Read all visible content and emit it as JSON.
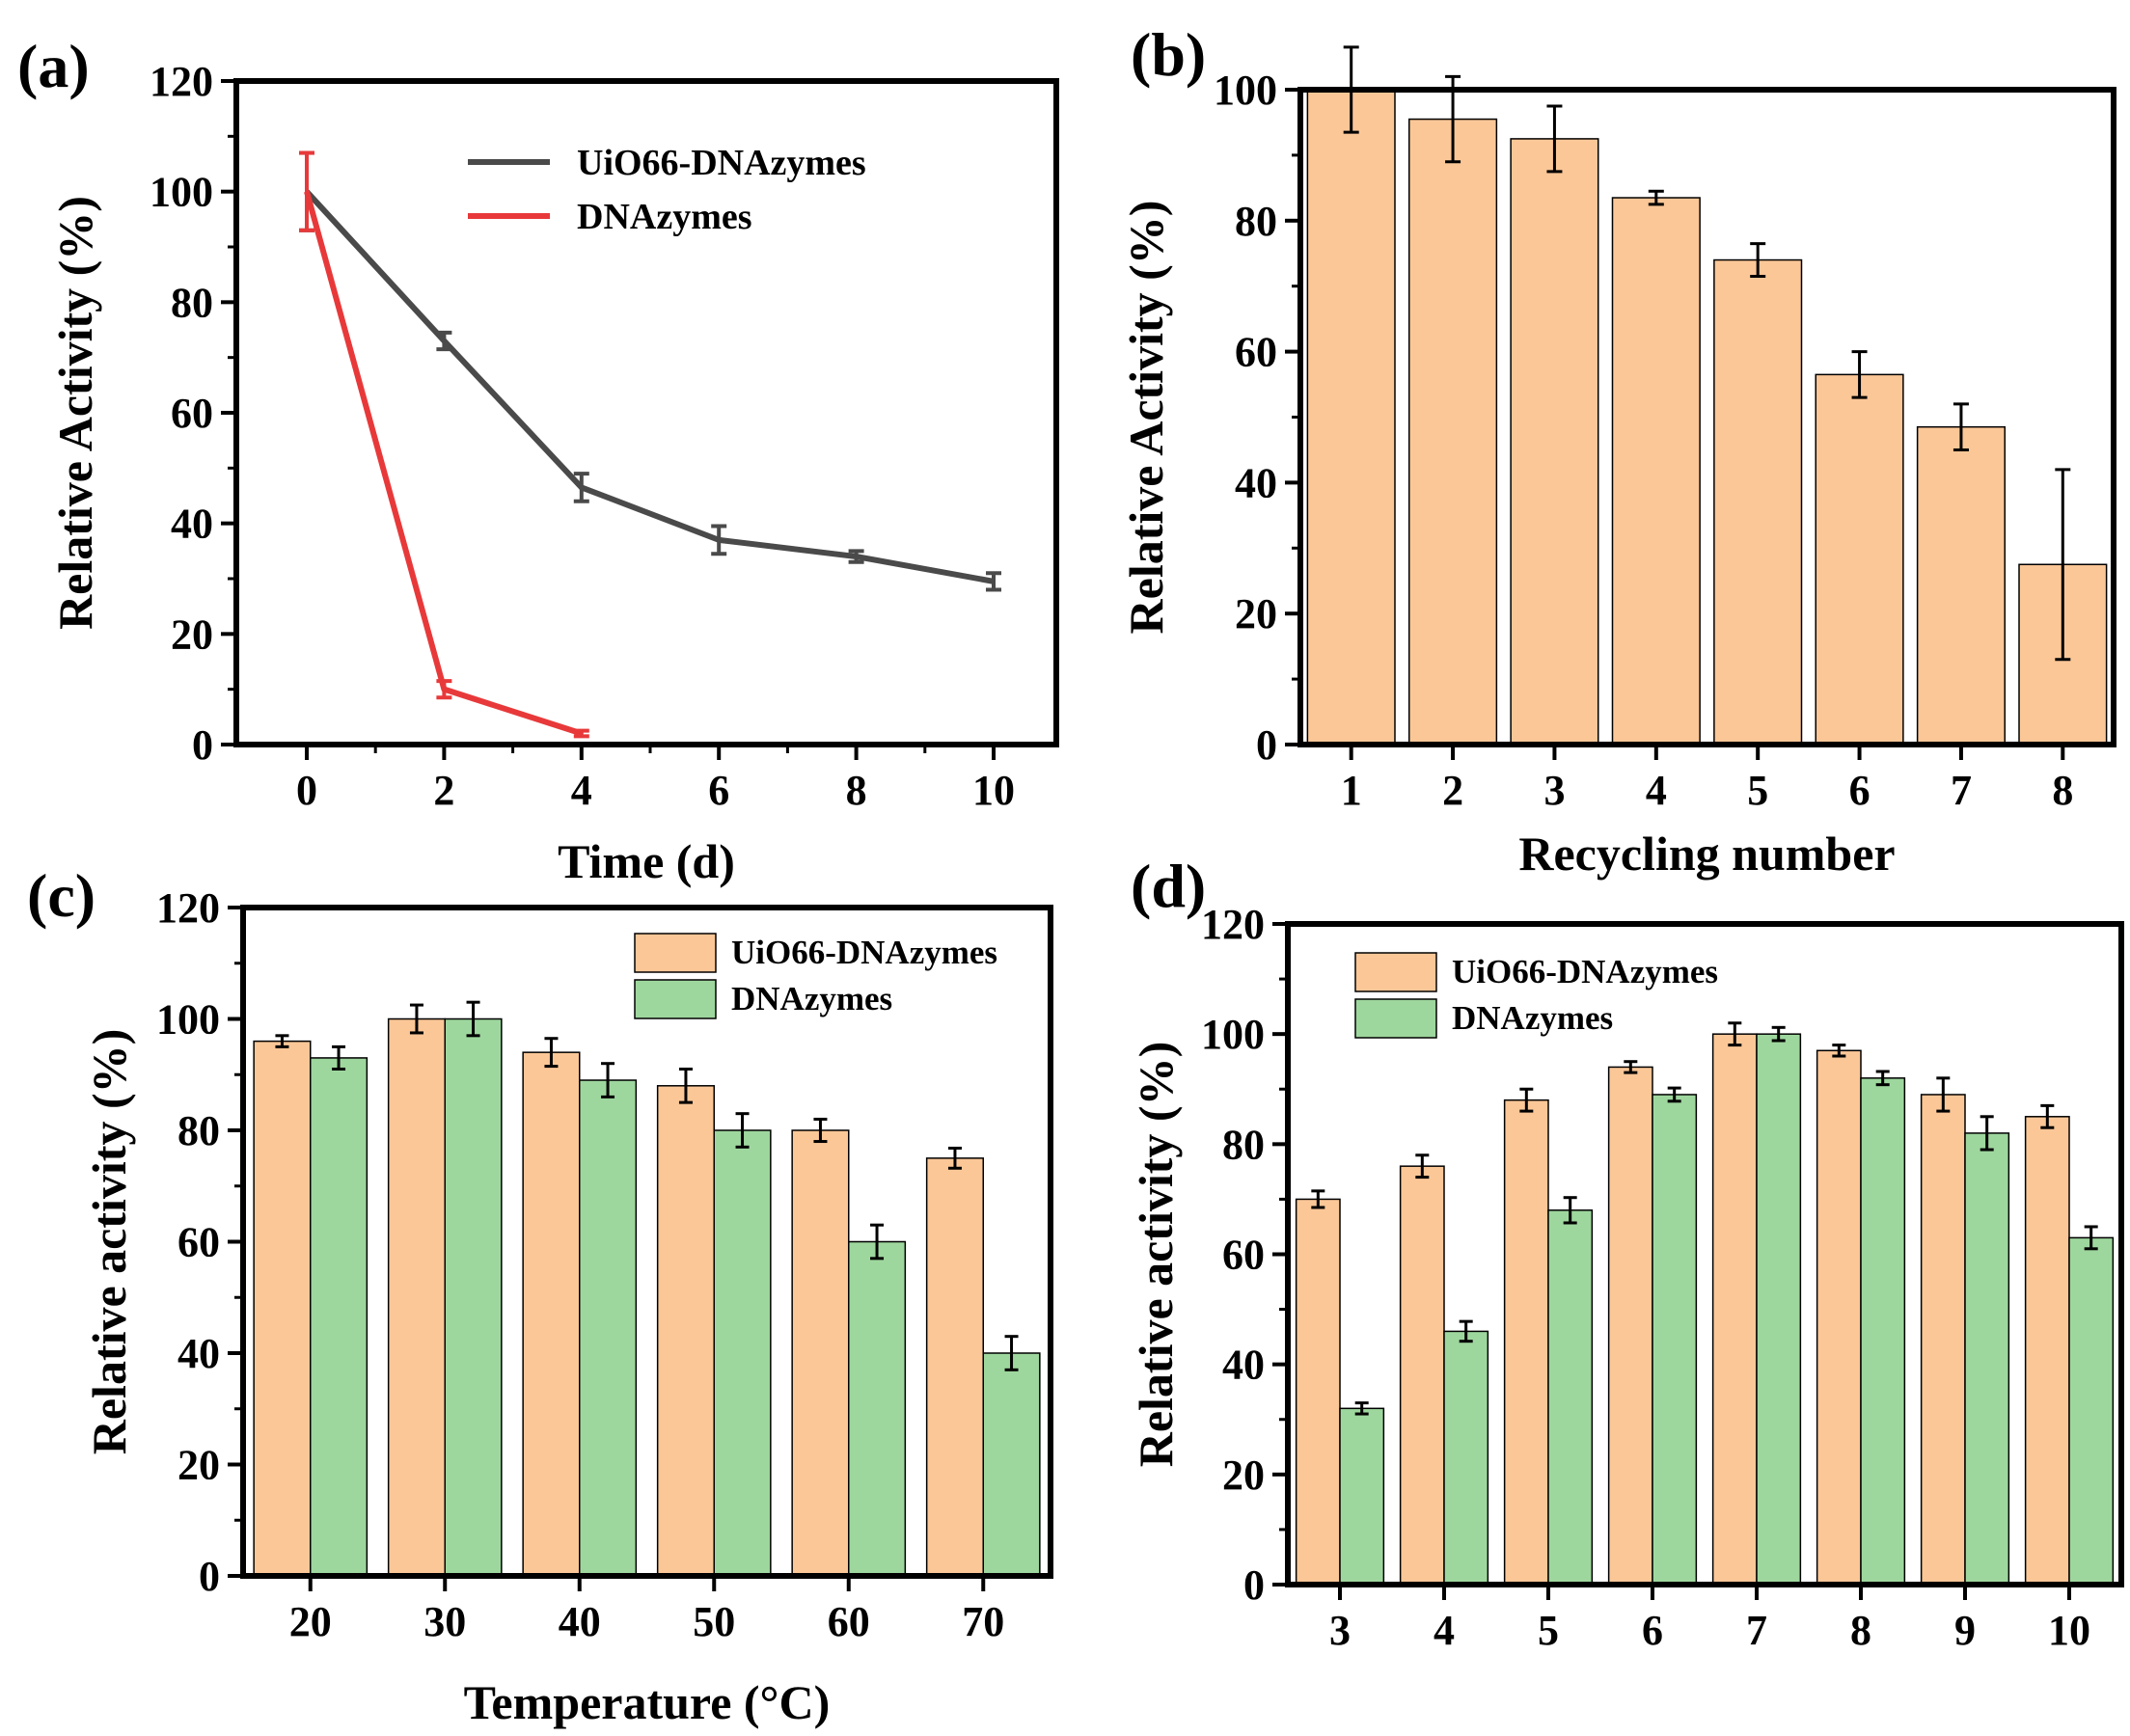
{
  "chart_data": [
    {
      "panel": "(a)",
      "type": "line",
      "xlabel": "Time (d)",
      "ylabel": "Relative Activity (%)",
      "xlim": [
        -1,
        11
      ],
      "ylim": [
        0,
        120
      ],
      "xticks": [
        0,
        2,
        4,
        6,
        8,
        10
      ],
      "yticks": [
        0,
        20,
        40,
        60,
        80,
        100,
        120
      ],
      "legend_position": "top-right",
      "series": [
        {
          "name": "UiO66-DNAzymes",
          "color": "#4a4a4a",
          "x": [
            0,
            2,
            4,
            6,
            8,
            10
          ],
          "values": [
            100,
            73,
            46.5,
            37,
            34,
            29.5
          ],
          "errors": [
            7,
            1.5,
            2.5,
            2.5,
            1,
            1.5
          ]
        },
        {
          "name": "DNAzymes",
          "color": "#e8393a",
          "x": [
            0,
            2,
            4
          ],
          "values": [
            100,
            10,
            2
          ],
          "errors": [
            7,
            1.5,
            0.5
          ]
        }
      ]
    },
    {
      "panel": "(b)",
      "type": "bar",
      "xlabel": "Recycling number",
      "ylabel": "Relative Activity (%)",
      "ylim": [
        0,
        100
      ],
      "yticks": [
        0,
        20,
        40,
        60,
        80,
        100
      ],
      "categories": [
        "1",
        "2",
        "3",
        "4",
        "5",
        "6",
        "7",
        "8"
      ],
      "series": [
        {
          "name": "Relative Activity",
          "color": "#fbc797",
          "values": [
            100,
            95.5,
            92.5,
            83.5,
            74,
            56.5,
            48.5,
            27.5
          ],
          "errors": [
            6.5,
            6.5,
            5,
            1,
            2.5,
            3.5,
            3.5,
            14.5
          ]
        }
      ]
    },
    {
      "panel": "(c)",
      "type": "bar",
      "xlabel": "Temperature (°C)",
      "ylabel": "Relative activity (%)",
      "ylim": [
        0,
        120
      ],
      "yticks": [
        0,
        20,
        40,
        60,
        80,
        100,
        120
      ],
      "categories": [
        "20",
        "30",
        "40",
        "50",
        "60",
        "70"
      ],
      "legend_position": "top-right",
      "series": [
        {
          "name": "UiO66-DNAzymes",
          "color": "#fbc797",
          "values": [
            96,
            100,
            94,
            88,
            80,
            75
          ],
          "errors": [
            1,
            2.5,
            2.5,
            3,
            2,
            1.8
          ]
        },
        {
          "name": "DNAzymes",
          "color": "#9ed79e",
          "values": [
            93,
            100,
            89,
            80,
            60,
            40
          ],
          "errors": [
            2,
            3,
            3,
            3,
            3,
            3
          ]
        }
      ]
    },
    {
      "panel": "(d)",
      "type": "bar",
      "xlabel": "",
      "ylabel": "Relative activity (%)",
      "ylim": [
        0,
        120
      ],
      "yticks": [
        0,
        20,
        40,
        60,
        80,
        100,
        120
      ],
      "categories": [
        "3",
        "4",
        "5",
        "6",
        "7",
        "8",
        "9",
        "10"
      ],
      "legend_position": "top-left",
      "series": [
        {
          "name": "UiO66-DNAzymes",
          "color": "#fbc797",
          "values": [
            70,
            76,
            88,
            94,
            100,
            97,
            89,
            85
          ],
          "errors": [
            1.5,
            2,
            2,
            1,
            2,
            1,
            3,
            2
          ]
        },
        {
          "name": "DNAzymes",
          "color": "#9ed79e",
          "values": [
            32,
            46,
            68,
            89,
            100,
            92,
            82,
            63
          ],
          "errors": [
            1,
            1.8,
            2.3,
            1.2,
            1.2,
            1.2,
            3,
            2
          ]
        }
      ]
    }
  ]
}
